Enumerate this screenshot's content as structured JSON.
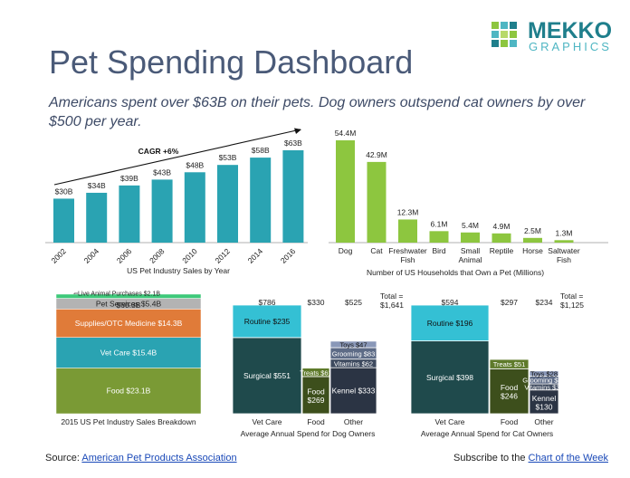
{
  "logo": {
    "word1": "MEKKO",
    "word2": "GRAPHICS",
    "colors": [
      "#8dc63f",
      "#4fb6c3",
      "#1f7f8c",
      "#b7d96a"
    ]
  },
  "title": "Pet Spending Dashboard",
  "subtitle": "Americans spent over $63B on their pets.  Dog owners outspend cat owners by over $500 per year.",
  "footer": {
    "source_prefix": "Source:",
    "source_link": "American Pet Products Association",
    "subscribe_prefix": "Subscribe to the",
    "subscribe_link": "Chart of the Week"
  },
  "chart_data": [
    {
      "id": "industry_sales",
      "type": "bar",
      "title": "US Pet Industry Sales by Year",
      "categories": [
        "2002",
        "2004",
        "2006",
        "2008",
        "2010",
        "2012",
        "2014",
        "2016"
      ],
      "values": [
        30,
        34,
        39,
        43,
        48,
        53,
        58,
        63
      ],
      "labels": [
        "$30B",
        "$34B",
        "$39B",
        "$43B",
        "$48B",
        "$53B",
        "$58B",
        "$63B"
      ],
      "annotation": "CAGR +6%",
      "unit": "$B",
      "color": "#2aa3b2"
    },
    {
      "id": "households",
      "type": "bar",
      "title": "Number of US Households that Own a Pet (Millions)",
      "categories": [
        "Dog",
        "Cat",
        "Freshwater Fish",
        "Bird",
        "Small Animal",
        "Reptile",
        "Horse",
        "Saltwater Fish"
      ],
      "values": [
        54.4,
        42.9,
        12.3,
        6.1,
        5.4,
        4.9,
        2.5,
        1.3
      ],
      "labels": [
        "54.4M",
        "42.9M",
        "12.3M",
        "6.1M",
        "5.4M",
        "4.9M",
        "2.5M",
        "1.3M"
      ],
      "color": "#8dc63f"
    },
    {
      "id": "breakdown",
      "type": "bar",
      "title": "2015 US Pet Industry Sales Breakdown",
      "total_label": "$60.3B",
      "segments": [
        {
          "name": "Food",
          "value": 23.1,
          "label": "Food $23.1B",
          "color": "#7a9a35"
        },
        {
          "name": "Vet Care",
          "value": 15.4,
          "label": "Vet Care $15.4B",
          "color": "#2aa3b2"
        },
        {
          "name": "Supplies/OTC Medicine",
          "value": 14.3,
          "label": "Supplies/OTC Medicine $14.3B",
          "color": "#e07b39"
        },
        {
          "name": "Pet Services",
          "value": 5.4,
          "label": "Pet Services $5.4B",
          "color": "#b3b3b3"
        },
        {
          "name": "Live Animal Purchases",
          "value": 2.1,
          "label": "Live Animal Purchases $2.1B",
          "color": "#3ec97a"
        }
      ]
    },
    {
      "id": "dog_spend",
      "type": "bar",
      "title": "Average Annual Spend for Dog Owners",
      "total_label": "Total = $1,641",
      "columns": [
        {
          "name": "Vet Care",
          "total": 786,
          "total_label": "$786",
          "segments": [
            {
              "name": "Surgical",
              "value": 551,
              "label": "Surgical $551",
              "color": "#1f4a4c"
            },
            {
              "name": "Routine",
              "value": 235,
              "label": "Routine $235",
              "color": "#34c0d4"
            }
          ]
        },
        {
          "name": "Food",
          "total": 330,
          "total_label": "$330",
          "segments": [
            {
              "name": "Food",
              "value": 269,
              "label": "Food $269",
              "color": "#3d4f1c"
            },
            {
              "name": "Treats",
              "value": 61,
              "label": "Treats $61",
              "color": "#5e7a2a"
            }
          ]
        },
        {
          "name": "Other",
          "total": 525,
          "total_label": "$525",
          "segments": [
            {
              "name": "Kennel",
              "value": 333,
              "label": "Kennel $333",
              "color": "#2b3444"
            },
            {
              "name": "Vitamins",
              "value": 62,
              "label": "Vitamins $62",
              "color": "#3e4a5f"
            },
            {
              "name": "Grooming",
              "value": 83,
              "label": "Grooming $83",
              "color": "#5d6b86"
            },
            {
              "name": "Toys",
              "value": 47,
              "label": "Toys $47",
              "color": "#8a98b8"
            }
          ]
        }
      ]
    },
    {
      "id": "cat_spend",
      "type": "bar",
      "title": "Average Annual Spend for Cat Owners",
      "total_label": "Total = $1,125",
      "columns": [
        {
          "name": "Vet Care",
          "total": 594,
          "total_label": "$594",
          "segments": [
            {
              "name": "Surgical",
              "value": 398,
              "label": "Surgical $398",
              "color": "#1f4a4c"
            },
            {
              "name": "Routine",
              "value": 196,
              "label": "Routine $196",
              "color": "#34c0d4"
            }
          ]
        },
        {
          "name": "Food",
          "total": 297,
          "total_label": "$297",
          "segments": [
            {
              "name": "Food",
              "value": 246,
              "label": "Food $246",
              "color": "#3d4f1c"
            },
            {
              "name": "Treats",
              "value": 51,
              "label": "Treats $51",
              "color": "#5e7a2a"
            }
          ]
        },
        {
          "name": "Other",
          "total": 234,
          "total_label": "$234",
          "segments": [
            {
              "name": "Kennel",
              "value": 130,
              "label": "Kennel $130",
              "color": "#2b3444"
            },
            {
              "name": "Vitamins",
              "value": 33,
              "label": "Vitamins $33",
              "color": "#3e4a5f"
            },
            {
              "name": "Grooming",
              "value": 43,
              "label": "Grooming $43",
              "color": "#5d6b86"
            },
            {
              "name": "Toys",
              "value": 28,
              "label": "Toys $28",
              "color": "#8a98b8"
            }
          ]
        }
      ]
    }
  ]
}
